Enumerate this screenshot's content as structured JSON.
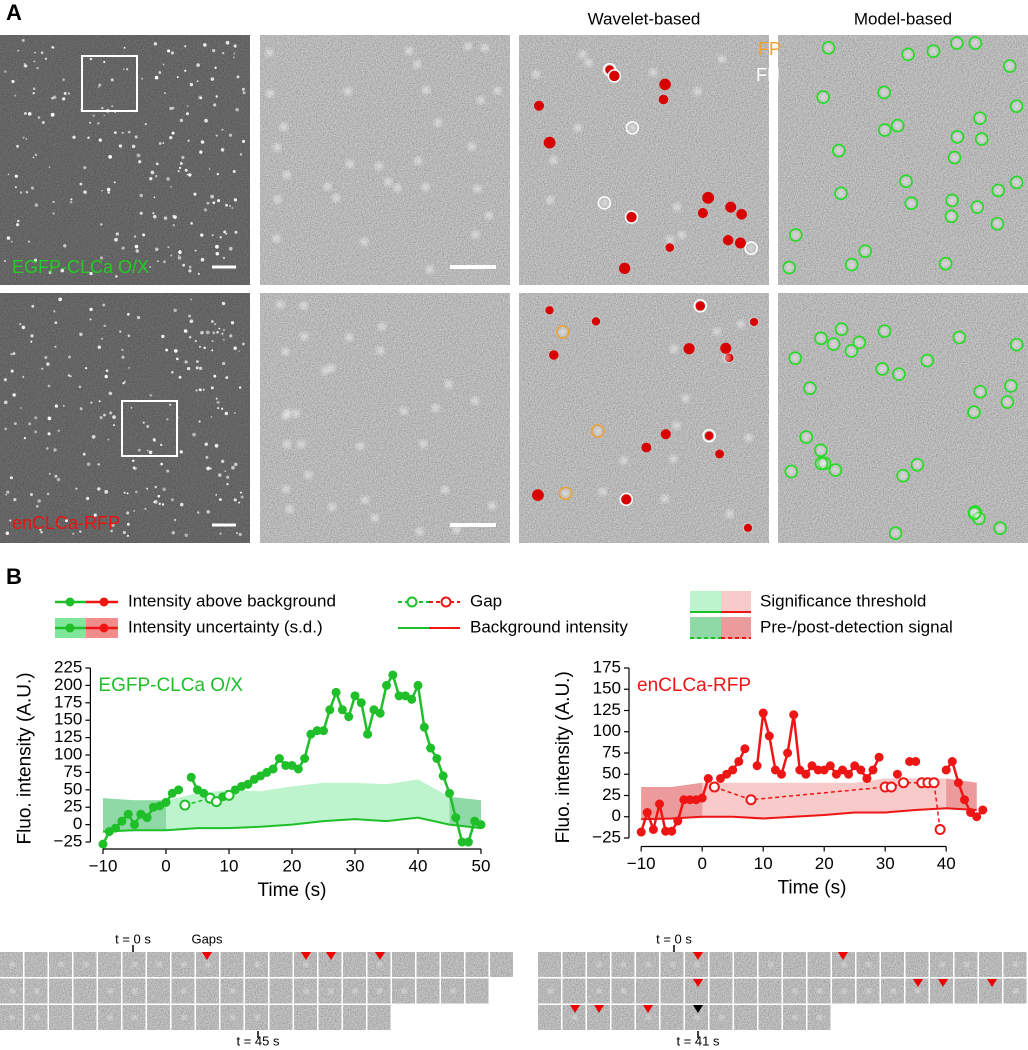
{
  "panel_a": {
    "label": "A",
    "columns": [
      "Wavelet-based",
      "Model-based"
    ],
    "rows": [
      "EGFP-CLCa O/X",
      "enCLCa-RFP"
    ],
    "fp": "FP",
    "fn": "FN"
  },
  "legend": {
    "label": "B",
    "items": [
      "Intensity above background",
      "Intensity uncertainty (s.d.)",
      "Gap",
      "Background intensity",
      "Significance threshold",
      "Pre-/post-detection signal"
    ]
  },
  "chart_data": [
    {
      "type": "line",
      "label": "EGFP-CLCa O/X",
      "color": "#1fbf2a",
      "band_color": "#bdf3cd",
      "pre_color": "#8fd9a6",
      "xlabel": "Time (s)",
      "ylabel": "Fluo. intensity (A.U.)",
      "xlim": [
        -12,
        52
      ],
      "ylim": [
        -35,
        225
      ],
      "xticks": [
        {
          "value": -10,
          "label": "−10"
        },
        0,
        10,
        20,
        30,
        40,
        50
      ],
      "yticks": [
        {
          "value": -25,
          "label": "−25"
        },
        0,
        25,
        50,
        75,
        100,
        125,
        150,
        175,
        200,
        225
      ],
      "x": [
        -10,
        -9,
        -8,
        -7,
        -6,
        -5,
        -4,
        -3,
        -2,
        -1,
        0,
        1,
        2,
        3,
        4,
        5,
        6,
        7,
        8,
        9,
        10,
        11,
        12,
        13,
        14,
        15,
        16,
        17,
        18,
        19,
        20,
        21,
        22,
        23,
        24,
        25,
        26,
        27,
        28,
        29,
        30,
        31,
        32,
        33,
        34,
        35,
        36,
        37,
        38,
        39,
        40,
        41,
        42,
        43,
        44,
        45,
        46,
        47,
        48,
        49,
        50
      ],
      "values": [
        -28,
        -10,
        -5,
        5,
        15,
        0,
        15,
        10,
        25,
        27,
        32,
        45,
        50,
        null,
        68,
        50,
        45,
        null,
        null,
        40,
        null,
        50,
        55,
        58,
        65,
        70,
        75,
        80,
        95,
        85,
        85,
        80,
        95,
        130,
        135,
        135,
        165,
        190,
        165,
        155,
        185,
        175,
        130,
        165,
        160,
        200,
        215,
        185,
        185,
        180,
        200,
        140,
        110,
        95,
        70,
        45,
        10,
        -25,
        -25,
        5,
        0
      ],
      "gaps": {
        "x": [
          3,
          7,
          8,
          10
        ],
        "values": [
          28,
          38,
          33,
          42
        ]
      },
      "band_x": [
        -10,
        -5,
        0,
        5,
        10,
        15,
        20,
        25,
        30,
        35,
        40,
        45,
        50
      ],
      "background": [
        -10,
        -8,
        -8,
        -5,
        -5,
        -3,
        0,
        5,
        8,
        5,
        10,
        0,
        -5
      ],
      "threshold": [
        38,
        35,
        35,
        45,
        50,
        48,
        55,
        60,
        60,
        58,
        65,
        40,
        35
      ],
      "detection": [
        0,
        45
      ]
    },
    {
      "type": "line",
      "label": "enCLCa-RFP",
      "color": "#ee1515",
      "band_color": "#f9caca",
      "pre_color": "#eb9b9b",
      "xlabel": "Time (s)",
      "ylabel": "Fluo. intensity (A.U.)",
      "xlim": [
        -12,
        48
      ],
      "ylim": [
        -35,
        175
      ],
      "xticks": [
        {
          "value": -10,
          "label": "−10"
        },
        0,
        10,
        20,
        30,
        40
      ],
      "yticks": [
        {
          "value": -25,
          "label": "−25"
        },
        0,
        25,
        50,
        75,
        100,
        125,
        150,
        175
      ],
      "x": [
        -10,
        -9,
        -8,
        -7,
        -6,
        -5,
        -4,
        -3,
        -2,
        -1,
        0,
        1,
        2,
        3,
        4,
        5,
        6,
        7,
        8,
        9,
        10,
        11,
        12,
        13,
        14,
        15,
        16,
        17,
        18,
        19,
        20,
        21,
        22,
        23,
        24,
        25,
        26,
        27,
        28,
        29,
        30,
        31,
        32,
        33,
        34,
        35,
        36,
        37,
        38,
        39,
        40,
        41,
        42,
        43,
        44,
        45,
        46
      ],
      "values": [
        -18,
        5,
        -15,
        15,
        -17,
        -17,
        -5,
        20,
        20,
        20,
        22,
        45,
        null,
        45,
        50,
        55,
        65,
        80,
        null,
        60,
        122,
        95,
        55,
        50,
        75,
        120,
        55,
        50,
        60,
        55,
        55,
        60,
        50,
        55,
        50,
        60,
        55,
        45,
        55,
        70,
        null,
        null,
        50,
        null,
        65,
        65,
        null,
        null,
        null,
        null,
        55,
        65,
        40,
        20,
        5,
        0,
        8
      ],
      "gaps": {
        "x": [
          2,
          8,
          30,
          31,
          33,
          36,
          37,
          38,
          39
        ],
        "values": [
          35,
          20,
          35,
          35,
          40,
          40,
          40,
          40,
          -15
        ]
      },
      "band_x": [
        -10,
        -5,
        0,
        5,
        10,
        15,
        20,
        25,
        30,
        35,
        40,
        45
      ],
      "background": [
        -3,
        -2,
        0,
        0,
        -2,
        0,
        2,
        5,
        5,
        8,
        10,
        8
      ],
      "threshold": [
        35,
        35,
        40,
        40,
        40,
        40,
        40,
        40,
        45,
        45,
        45,
        40
      ],
      "detection": [
        0,
        40
      ]
    }
  ],
  "filmstrips": [
    {
      "start": "t = 0 s",
      "gaps": "Gaps",
      "end": "t = 45 s"
    },
    {
      "start": "t = 0 s",
      "end": "t = 41 s"
    }
  ]
}
